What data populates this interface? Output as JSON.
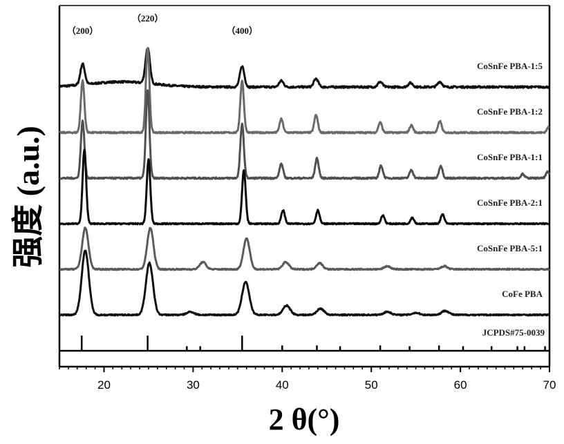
{
  "chart_data": {
    "type": "line",
    "xlabel": "2 θ(°)",
    "ylabel": "强度 (a.u.)",
    "xlim": [
      15,
      70
    ],
    "x_ticks": [
      20,
      30,
      40,
      50,
      60,
      70
    ],
    "grid": false,
    "peak_annotations": [
      {
        "label": "（200）",
        "x": 17.6
      },
      {
        "label": "（220）",
        "x": 24.9
      },
      {
        "label": "（400）",
        "x": 35.5
      }
    ],
    "series": [
      {
        "name": "CoSnFe PBA-1:5",
        "color": "#111111",
        "offset": 5.0,
        "width": 0.25,
        "noise": 0.018,
        "peaks": [
          [
            17.6,
            0.2
          ],
          [
            24.9,
            0.34
          ],
          [
            35.5,
            0.2
          ],
          [
            39.9,
            0.06
          ],
          [
            43.8,
            0.08
          ],
          [
            51.0,
            0.05
          ],
          [
            54.4,
            0.04
          ],
          [
            57.7,
            0.05
          ]
        ]
      },
      {
        "name": "CoSnFe PBA-1:2",
        "color": "#6a6a6a",
        "offset": 4.0,
        "width": 0.2,
        "noise": 0.015,
        "peaks": [
          [
            17.6,
            0.5
          ],
          [
            24.9,
            0.82
          ],
          [
            35.5,
            0.5
          ],
          [
            39.9,
            0.13
          ],
          [
            43.8,
            0.17
          ],
          [
            51.0,
            0.1
          ],
          [
            54.5,
            0.07
          ],
          [
            57.7,
            0.11
          ],
          [
            69.9,
            0.05
          ]
        ]
      },
      {
        "name": "CoSnFe PBA-1:1",
        "color": "#505050",
        "offset": 3.0,
        "width": 0.2,
        "noise": 0.015,
        "peaks": [
          [
            17.6,
            0.55
          ],
          [
            24.9,
            0.85
          ],
          [
            35.5,
            0.52
          ],
          [
            39.9,
            0.14
          ],
          [
            43.9,
            0.19
          ],
          [
            51.1,
            0.12
          ],
          [
            54.5,
            0.08
          ],
          [
            57.8,
            0.12
          ],
          [
            67.0,
            0.04
          ],
          [
            69.8,
            0.06
          ]
        ]
      },
      {
        "name": "CoSnFe PBA-2:1",
        "color": "#0a0a0a",
        "offset": 2.0,
        "width": 0.2,
        "noise": 0.012,
        "peaks": [
          [
            17.8,
            0.72
          ],
          [
            25.0,
            0.62
          ],
          [
            35.7,
            0.52
          ],
          [
            40.1,
            0.13
          ],
          [
            44.0,
            0.13
          ],
          [
            51.3,
            0.08
          ],
          [
            54.6,
            0.06
          ],
          [
            58.0,
            0.09
          ]
        ]
      },
      {
        "name": "CoSnFe PBA-5:1",
        "color": "#5a5a5a",
        "offset": 1.0,
        "width": 0.35,
        "noise": 0.012,
        "peaks": [
          [
            17.9,
            0.4
          ],
          [
            25.2,
            0.4
          ],
          [
            31.1,
            0.07
          ],
          [
            36.0,
            0.3
          ],
          [
            40.4,
            0.07
          ],
          [
            44.2,
            0.06
          ],
          [
            51.8,
            0.03
          ],
          [
            58.2,
            0.03
          ]
        ]
      },
      {
        "name": "CoFe PBA",
        "color": "#111111",
        "offset": 0.0,
        "width": 0.4,
        "noise": 0.012,
        "peaks": [
          [
            17.9,
            0.62
          ],
          [
            25.1,
            0.5
          ],
          [
            29.7,
            0.03
          ],
          [
            35.9,
            0.32
          ],
          [
            40.5,
            0.09
          ],
          [
            44.3,
            0.06
          ],
          [
            51.8,
            0.03
          ],
          [
            55.0,
            0.02
          ],
          [
            58.3,
            0.04
          ]
        ]
      }
    ],
    "reference": {
      "name": "JCPDS#75-0039",
      "lines": [
        [
          17.5,
          1.0
        ],
        [
          24.9,
          1.0
        ],
        [
          29.3,
          0.3
        ],
        [
          30.8,
          0.3
        ],
        [
          35.5,
          1.0
        ],
        [
          40.0,
          0.35
        ],
        [
          43.9,
          0.35
        ],
        [
          46.5,
          0.3
        ],
        [
          51.0,
          0.35
        ],
        [
          54.3,
          0.3
        ],
        [
          57.6,
          0.35
        ],
        [
          60.3,
          0.3
        ],
        [
          63.5,
          0.3
        ],
        [
          66.4,
          0.3
        ],
        [
          67.2,
          0.3
        ],
        [
          69.5,
          0.3
        ]
      ]
    }
  }
}
